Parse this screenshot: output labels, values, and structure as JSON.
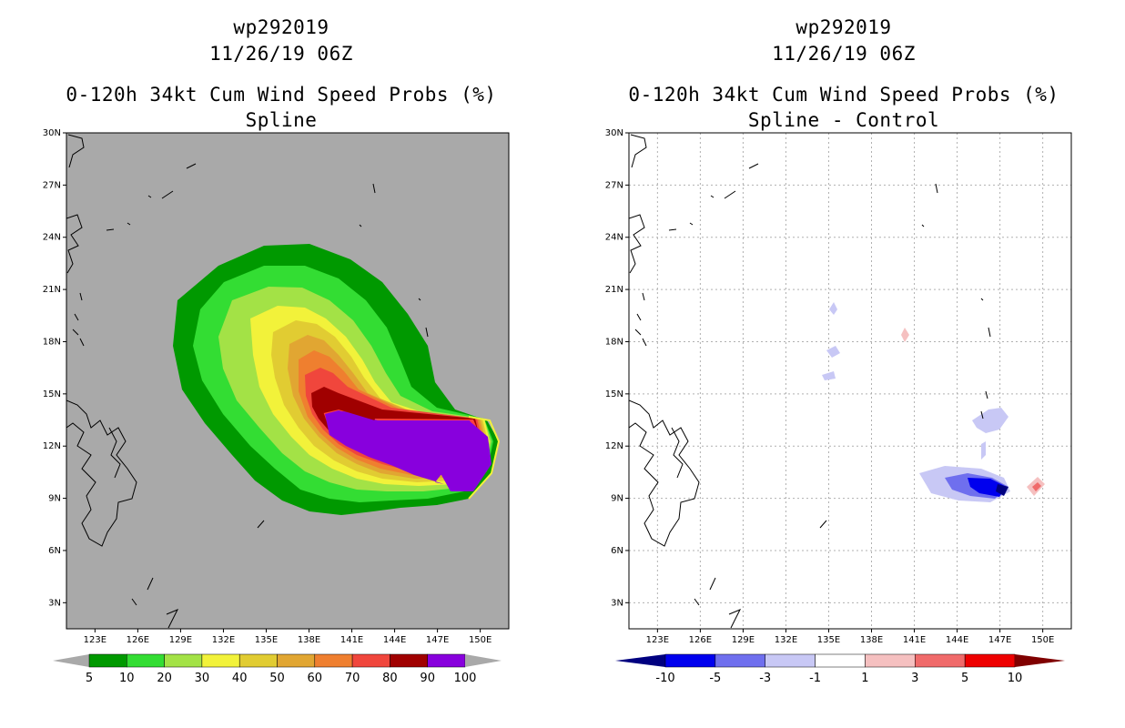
{
  "chart_data": [
    {
      "type": "filled-contour-map",
      "header": {
        "storm_id": "wp292019",
        "datetime": "11/26/19 06Z"
      },
      "title": "0-120h 34kt Cum Wind Speed Probs (%)",
      "subtitle": "Spline",
      "x_ticks": [
        "123E",
        "126E",
        "129E",
        "132E",
        "135E",
        "138E",
        "141E",
        "144E",
        "147E",
        "150E"
      ],
      "y_ticks": [
        "30N",
        "27N",
        "24N",
        "21N",
        "18N",
        "15N",
        "12N",
        "9N",
        "6N",
        "3N"
      ],
      "xlim": [
        121,
        152
      ],
      "ylim": [
        1.5,
        30
      ],
      "background": "#a9a9a9",
      "colorbar": {
        "labels": [
          "5",
          "10",
          "20",
          "30",
          "40",
          "50",
          "60",
          "70",
          "80",
          "90",
          "100"
        ],
        "colors": [
          "#009900",
          "#33dd33",
          "#a3e246",
          "#f2f23a",
          "#e1cc32",
          "#e1a632",
          "#ef7f2f",
          "#f0463c",
          "#a00000",
          "#8800dd"
        ]
      }
    },
    {
      "type": "filled-contour-map",
      "header": {
        "storm_id": "wp292019",
        "datetime": "11/26/19 06Z"
      },
      "title": "0-120h 34kt Cum Wind Speed Probs (%)",
      "subtitle": "Spline - Control",
      "x_ticks": [
        "123E",
        "126E",
        "129E",
        "132E",
        "135E",
        "138E",
        "141E",
        "144E",
        "147E",
        "150E"
      ],
      "y_ticks": [
        "30N",
        "27N",
        "24N",
        "21N",
        "18N",
        "15N",
        "12N",
        "9N",
        "6N",
        "3N"
      ],
      "xlim": [
        121,
        152
      ],
      "ylim": [
        1.5,
        30
      ],
      "background": "#ffffff",
      "colorbar": {
        "labels": [
          "-10",
          "-5",
          "-3",
          "-1",
          "1",
          "3",
          "5",
          "10"
        ],
        "colors": [
          "#000080",
          "#0000ee",
          "#6f6fee",
          "#c8c8f5",
          "#ffffff",
          "#f5c0c0",
          "#f06a6a",
          "#ee0000",
          "#800000"
        ]
      }
    }
  ]
}
